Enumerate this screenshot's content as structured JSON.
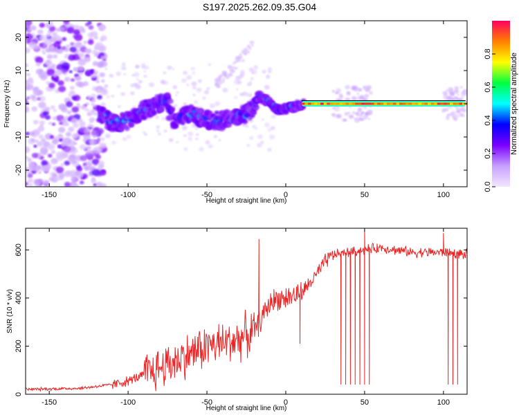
{
  "title": "S197.2025.262.09.35.G04",
  "spectrogram": {
    "type": "heatmap",
    "xlabel": "Height of straight line (km)",
    "ylabel": "Frequency (Hz)",
    "xlim": [
      -165,
      115
    ],
    "ylim": [
      -25,
      25
    ],
    "xticks": [
      -150,
      -100,
      -50,
      0,
      50,
      100
    ],
    "xtick_labels": [
      "-150",
      "-100",
      "-50",
      "0",
      "50",
      "100"
    ],
    "yticks": [
      -20,
      -10,
      0,
      10,
      20
    ],
    "ytick_labels": [
      "-20",
      "-10",
      "0",
      "10",
      "20"
    ],
    "colorbar": {
      "label": "Normalized spectral amplitude",
      "range": [
        0,
        1
      ],
      "ticks": [
        0.0,
        0.2,
        0.4,
        0.6,
        0.8
      ],
      "tick_labels": [
        "0.0",
        "0.2",
        "0.4",
        "0.6",
        "0.8"
      ],
      "colormap": [
        "#f2e6ff",
        "#c7a0ff",
        "#7a00ff",
        "#0000ff",
        "#00ffff",
        "#00ff40",
        "#ffff00",
        "#ff8000",
        "#ff0060"
      ]
    },
    "ridge": [
      {
        "x": -118,
        "y": -3
      },
      {
        "x": -110,
        "y": -6
      },
      {
        "x": -100,
        "y": -5
      },
      {
        "x": -90,
        "y": -2
      },
      {
        "x": -80,
        "y": 0
      },
      {
        "x": -75,
        "y": 2
      },
      {
        "x": -72,
        "y": -5
      },
      {
        "x": -60,
        "y": -3
      },
      {
        "x": -50,
        "y": -5
      },
      {
        "x": -40,
        "y": -5
      },
      {
        "x": -30,
        "y": -4
      },
      {
        "x": -22,
        "y": -2
      },
      {
        "x": -17,
        "y": 2
      },
      {
        "x": -12,
        "y": 1
      },
      {
        "x": -7,
        "y": -1
      },
      {
        "x": -2,
        "y": -2
      },
      {
        "x": 3,
        "y": -1
      },
      {
        "x": 8,
        "y": -0.5
      },
      {
        "x": 12,
        "y": 0
      },
      {
        "x": 114,
        "y": 0
      }
    ],
    "noisy_band_x": [
      -165,
      -125
    ],
    "tone_line": {
      "y": 0,
      "x_start": 10,
      "x_end": 114
    }
  },
  "snr": {
    "type": "line",
    "xlabel": "Height of straight line (km)",
    "ylabel": "SNR (10 * v/v)",
    "xlim": [
      -165,
      115
    ],
    "ylim": [
      0,
      690
    ],
    "xticks": [
      -150,
      -100,
      -50,
      0,
      50,
      100
    ],
    "xtick_labels": [
      "-150",
      "-100",
      "-50",
      "0",
      "50",
      "100"
    ],
    "yticks": [
      0,
      200,
      400,
      600
    ],
    "ytick_labels": [
      "0",
      "200",
      "400",
      "600"
    ],
    "line_color": "#ee2222",
    "trend": [
      {
        "x": -165,
        "y": 20
      },
      {
        "x": -130,
        "y": 25
      },
      {
        "x": -110,
        "y": 40
      },
      {
        "x": -100,
        "y": 55
      },
      {
        "x": -90,
        "y": 80
      },
      {
        "x": -80,
        "y": 110
      },
      {
        "x": -70,
        "y": 140
      },
      {
        "x": -60,
        "y": 170
      },
      {
        "x": -50,
        "y": 200
      },
      {
        "x": -40,
        "y": 210
      },
      {
        "x": -30,
        "y": 230
      },
      {
        "x": -20,
        "y": 260
      },
      {
        "x": -15,
        "y": 320
      },
      {
        "x": -10,
        "y": 380
      },
      {
        "x": -5,
        "y": 400
      },
      {
        "x": 0,
        "y": 400
      },
      {
        "x": 10,
        "y": 420
      },
      {
        "x": 20,
        "y": 500
      },
      {
        "x": 25,
        "y": 550
      },
      {
        "x": 30,
        "y": 580
      },
      {
        "x": 40,
        "y": 590
      },
      {
        "x": 50,
        "y": 600
      },
      {
        "x": 60,
        "y": 610
      },
      {
        "x": 70,
        "y": 600
      },
      {
        "x": 80,
        "y": 590
      },
      {
        "x": 90,
        "y": 590
      },
      {
        "x": 100,
        "y": 590
      },
      {
        "x": 115,
        "y": 580
      }
    ],
    "spikes": [
      {
        "x": -17,
        "y": 645
      },
      {
        "x": 50,
        "y": 680
      },
      {
        "x": 100,
        "y": 670
      }
    ],
    "dips": [
      {
        "x": 9,
        "y": 210
      },
      {
        "x": 35,
        "y": 40
      },
      {
        "x": 38,
        "y": 40
      },
      {
        "x": 41,
        "y": 40
      },
      {
        "x": 44,
        "y": 40
      },
      {
        "x": 47,
        "y": 40
      },
      {
        "x": 50,
        "y": 40
      },
      {
        "x": 53,
        "y": 40
      },
      {
        "x": 103,
        "y": 40
      },
      {
        "x": 106,
        "y": 40
      },
      {
        "x": 109,
        "y": 40
      }
    ]
  }
}
